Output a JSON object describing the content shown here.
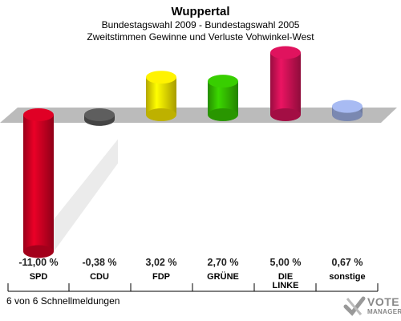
{
  "header": {
    "title": "Wuppertal",
    "subtitle1": "Bundestagswahl 2009 - Bundestagswahl 2005",
    "subtitle2": "Zweitstimmen Gewinne und Verluste Vohwinkel-West"
  },
  "chart_data": {
    "type": "bar",
    "categories": [
      "SPD",
      "CDU",
      "FDP",
      "GRÜNE",
      "DIE LINKE",
      "sonstige"
    ],
    "values": [
      -11.0,
      -0.38,
      3.02,
      2.7,
      5.0,
      0.67
    ],
    "value_labels": [
      "-11,00 %",
      "-0,38 %",
      "3,02 %",
      "2,70 %",
      "5,00 %",
      "0,67 %"
    ],
    "colors": [
      "#cc0022",
      "#555555",
      "#eedd00",
      "#33bb00",
      "#cc1155",
      "#99aadd"
    ],
    "grid": false,
    "legend": "none"
  },
  "footer": {
    "text": "6 von 6 Schnellmeldungen"
  },
  "logo": {
    "line1": "VOTE",
    "line2": "MANAGER"
  }
}
